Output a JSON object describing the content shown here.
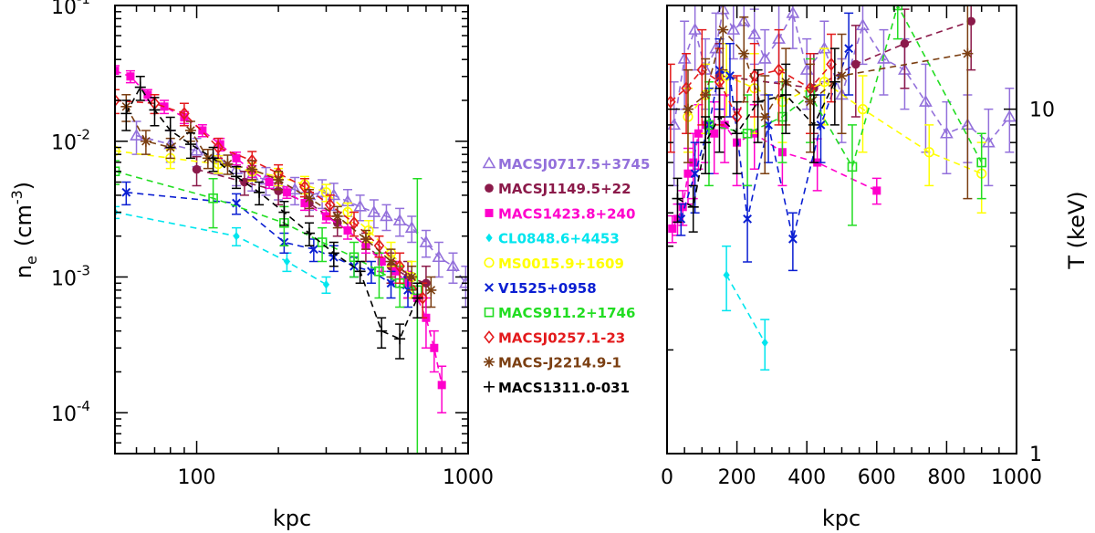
{
  "chart_data": [
    {
      "type": "scatter",
      "xscale": "log",
      "yscale": "log",
      "xlabel": "kpc",
      "ylabel_parts": {
        "base": "n",
        "sub": "e",
        "unit_open": "(cm",
        "unit_exp": "-3",
        "unit_close": ")"
      },
      "xlim": [
        50,
        1000
      ],
      "ylim": [
        5e-05,
        0.1
      ],
      "xticks": [
        {
          "v": 100,
          "label": "100"
        },
        {
          "v": 1000,
          "label": "1000"
        }
      ],
      "yticks": [
        {
          "v": 0.0001,
          "base": "10",
          "exp": "-4"
        },
        {
          "v": 0.001,
          "base": "10",
          "exp": "-3"
        },
        {
          "v": 0.01,
          "base": "10",
          "exp": "-2"
        },
        {
          "v": 0.1,
          "base": "10",
          "exp": "-1"
        }
      ],
      "series": [
        {
          "name": "MACSJ0717.5+3745",
          "color": "#9370DB",
          "marker": "triangle",
          "x": [
            60,
            80,
            100,
            120,
            140,
            160,
            180,
            200,
            230,
            260,
            290,
            320,
            360,
            400,
            450,
            500,
            560,
            620,
            700,
            780,
            880,
            980
          ],
          "y": [
            0.011,
            0.0095,
            0.0085,
            0.0075,
            0.0062,
            0.0056,
            0.0052,
            0.0048,
            0.0044,
            0.004,
            0.0042,
            0.004,
            0.0036,
            0.0033,
            0.003,
            0.0028,
            0.0026,
            0.0023,
            0.0018,
            0.0014,
            0.0012,
            0.0009
          ],
          "err": [
            0.003,
            0.0025,
            0.002,
            0.0018,
            0.0015,
            0.0013,
            0.0012,
            0.0011,
            0.001,
            0.0009,
            0.001,
            0.0009,
            0.0008,
            0.0007,
            0.0007,
            0.0006,
            0.0006,
            0.0005,
            0.0004,
            0.0004,
            0.0003,
            0.0003
          ]
        },
        {
          "name": "MACSJ1149.5+22",
          "color": "#8B1A4A",
          "marker": "circle",
          "x": [
            100,
            150,
            200,
            260,
            330,
            420,
            520,
            600,
            700
          ],
          "y": [
            0.0062,
            0.005,
            0.0043,
            0.0035,
            0.0025,
            0.0017,
            0.0012,
            0.001,
            0.0009
          ],
          "err": [
            0.0015,
            0.001,
            0.0009,
            0.0007,
            0.0005,
            0.0004,
            0.0003,
            0.0003,
            0.0003
          ]
        },
        {
          "name": "MACS1423.8+240",
          "color": "#FF00CC",
          "marker": "square",
          "x": [
            50,
            57,
            66,
            76,
            90,
            105,
            122,
            140,
            160,
            185,
            215,
            250,
            300,
            360,
            420,
            480,
            540,
            600,
            650,
            700,
            750,
            800
          ],
          "y": [
            0.033,
            0.03,
            0.022,
            0.018,
            0.015,
            0.012,
            0.0095,
            0.0075,
            0.006,
            0.005,
            0.0042,
            0.0035,
            0.0028,
            0.0022,
            0.0017,
            0.0013,
            0.0011,
            0.0009,
            0.0007,
            0.0005,
            0.0003,
            0.00016
          ],
          "err": [
            0.003,
            0.003,
            0.002,
            0.002,
            0.0015,
            0.0012,
            0.001,
            0.0008,
            0.0006,
            0.0005,
            0.0004,
            0.0004,
            0.0003,
            0.0003,
            0.0002,
            0.0002,
            0.0002,
            0.0002,
            0.0002,
            0.0002,
            0.0001,
            6e-05
          ]
        },
        {
          "name": "CL0848.6+4453",
          "color": "#00E5EE",
          "marker": "diamond",
          "x": [
            50,
            140,
            215,
            300
          ],
          "y": [
            0.003,
            0.002,
            0.0013,
            0.00088
          ],
          "err": [
            0.0003,
            0.0003,
            0.0002,
            0.00012
          ]
        },
        {
          "name": "MS0015.9+1609",
          "color": "#FFFF00",
          "marker": "circle_open",
          "x": [
            50,
            80,
            120,
            160,
            200,
            250,
            300,
            360,
            430,
            520,
            620
          ],
          "y": [
            0.0085,
            0.0075,
            0.0068,
            0.006,
            0.0055,
            0.0048,
            0.0042,
            0.003,
            0.0022,
            0.0015,
            0.001
          ],
          "err": [
            0.0015,
            0.0012,
            0.001,
            0.0009,
            0.0008,
            0.0007,
            0.0006,
            0.0005,
            0.0004,
            0.0003,
            0.0003
          ]
        },
        {
          "name": "V1525+0958",
          "color": "#0A1ED2",
          "marker": "x",
          "x": [
            55,
            140,
            210,
            270,
            320,
            380,
            440,
            520,
            600
          ],
          "y": [
            0.0042,
            0.0035,
            0.0018,
            0.0016,
            0.0014,
            0.0012,
            0.0011,
            0.0009,
            0.0008
          ],
          "err": [
            0.0008,
            0.0006,
            0.0003,
            0.0003,
            0.0003,
            0.0002,
            0.0002,
            0.0002,
            0.0002
          ]
        },
        {
          "name": "MACS911.2+1746",
          "color": "#22DD22",
          "marker": "square_open",
          "x": [
            50,
            115,
            210,
            290,
            380,
            470,
            560,
            650
          ],
          "y": [
            0.006,
            0.0038,
            0.0025,
            0.0018,
            0.0014,
            0.0011,
            0.0009,
            0.0008
          ],
          "err": [
            0.0012,
            0.0015,
            0.0008,
            0.0005,
            0.0004,
            0.0004,
            0.0003,
            0.0045
          ]
        },
        {
          "name": "MACSJ0257.1-23",
          "color": "#E31A1C",
          "marker": "diamond_open",
          "x": [
            50,
            70,
            90,
            120,
            160,
            200,
            250,
            310,
            380,
            470,
            560,
            680
          ],
          "y": [
            0.02,
            0.019,
            0.016,
            0.009,
            0.0072,
            0.0058,
            0.0046,
            0.0034,
            0.0025,
            0.0017,
            0.0012,
            0.0007
          ],
          "err": [
            0.004,
            0.003,
            0.003,
            0.0015,
            0.0012,
            0.0009,
            0.0007,
            0.0006,
            0.0005,
            0.0003,
            0.0003,
            0.0002
          ]
        },
        {
          "name": "MACS-J2214.9-1",
          "color": "#7B3F12",
          "marker": "star",
          "x": [
            55,
            65,
            80,
            95,
            110,
            130,
            160,
            200,
            260,
            330,
            420,
            520,
            620,
            730
          ],
          "y": [
            0.018,
            0.01,
            0.009,
            0.012,
            0.0075,
            0.0068,
            0.0062,
            0.0052,
            0.0038,
            0.0028,
            0.0019,
            0.0013,
            0.001,
            0.0008
          ],
          "err": [
            0.004,
            0.002,
            0.0015,
            0.002,
            0.0012,
            0.0011,
            0.001,
            0.0008,
            0.0006,
            0.0005,
            0.0003,
            0.0003,
            0.0002,
            0.0002
          ]
        },
        {
          "name": "MACS1311.0-031",
          "color": "#000000",
          "marker": "plus",
          "x": [
            55,
            62,
            70,
            80,
            95,
            115,
            140,
            170,
            210,
            260,
            320,
            400,
            480,
            560,
            650
          ],
          "y": [
            0.016,
            0.025,
            0.017,
            0.012,
            0.0095,
            0.0075,
            0.0055,
            0.0042,
            0.003,
            0.0021,
            0.0015,
            0.0011,
            0.0004,
            0.00035,
            0.0007
          ],
          "err": [
            0.004,
            0.005,
            0.004,
            0.003,
            0.002,
            0.0015,
            0.001,
            0.0008,
            0.0006,
            0.0004,
            0.0003,
            0.0002,
            0.0001,
            0.0001,
            0.0002
          ]
        }
      ]
    },
    {
      "type": "scatter",
      "xscale": "linear",
      "yscale": "log",
      "xlabel": "kpc",
      "ylabel": "T (keV)",
      "xlim": [
        0,
        1000
      ],
      "ylim": [
        1,
        20
      ],
      "xticks": [
        {
          "v": 0,
          "label": "0"
        },
        {
          "v": 200,
          "label": "200"
        },
        {
          "v": 400,
          "label": "400"
        },
        {
          "v": 600,
          "label": "600"
        },
        {
          "v": 800,
          "label": "800"
        },
        {
          "v": 1000,
          "label": "1000"
        }
      ],
      "yticks": [
        {
          "v": 1,
          "label": "1"
        },
        {
          "v": 10,
          "label": "10"
        }
      ],
      "series": [
        {
          "name": "MACSJ0717.5+3745",
          "color": "#9370DB",
          "marker": "triangle",
          "x": [
            20,
            50,
            80,
            110,
            140,
            160,
            190,
            220,
            250,
            280,
            320,
            360,
            400,
            450,
            500,
            560,
            620,
            680,
            740,
            800,
            860,
            920,
            980
          ],
          "y": [
            9.0,
            14.0,
            17.0,
            13.0,
            15.0,
            19.5,
            17.0,
            18.0,
            16.5,
            14.0,
            16.0,
            19.0,
            13.0,
            15.0,
            11.0,
            17.5,
            14.0,
            13.0,
            10.5,
            8.5,
            9.0,
            8.0,
            9.5
          ],
          "err": [
            3,
            4,
            4,
            3,
            4,
            4,
            3,
            4,
            3,
            3,
            4,
            4,
            3,
            3,
            3,
            4,
            3,
            3,
            3,
            2,
            2,
            2,
            2
          ]
        },
        {
          "name": "MACSJ1149.5+22",
          "color": "#8B1A4A",
          "marker": "circle",
          "x": [
            150,
            420,
            540,
            680,
            870
          ],
          "y": [
            12.5,
            11.5,
            13.5,
            15.5,
            18.0
          ],
          "err": [
            3,
            3,
            4,
            4,
            5
          ]
        },
        {
          "name": "MACS1423.8+240",
          "color": "#FF00CC",
          "marker": "square",
          "x": [
            15,
            30,
            45,
            60,
            75,
            90,
            110,
            135,
            165,
            200,
            250,
            330,
            430,
            600
          ],
          "y": [
            4.5,
            4.8,
            5.2,
            6.5,
            7.0,
            8.5,
            9.0,
            8.5,
            9.0,
            8.0,
            8.5,
            7.5,
            7.0,
            5.8
          ],
          "err": [
            0.4,
            0.5,
            0.6,
            1.2,
            1.5,
            1.8,
            2,
            2,
            2,
            2,
            1.8,
            1.5,
            1.2,
            0.5
          ]
        },
        {
          "name": "CL0848.6+4453",
          "color": "#00E5EE",
          "marker": "diamond",
          "x": [
            170,
            280
          ],
          "y": [
            3.3,
            2.1
          ],
          "err": [
            0.7,
            0.35
          ]
        },
        {
          "name": "MS0015.9+1609",
          "color": "#FFFF00",
          "marker": "circle_open",
          "x": [
            60,
            110,
            170,
            250,
            330,
            450,
            560,
            750,
            900
          ],
          "y": [
            9.5,
            11.0,
            12.5,
            11.5,
            10.5,
            12.0,
            10.0,
            7.5,
            6.5
          ],
          "err": [
            2,
            2.5,
            3,
            3,
            2.5,
            3,
            2.5,
            1.5,
            1.5
          ]
        },
        {
          "name": "V1525+0958",
          "color": "#0A1ED2",
          "marker": "x",
          "x": [
            40,
            80,
            120,
            150,
            180,
            230,
            290,
            360,
            440,
            520
          ],
          "y": [
            4.8,
            6.5,
            9.0,
            13.0,
            12.5,
            4.8,
            9.0,
            4.2,
            9.0,
            15.0
          ],
          "err": [
            0.5,
            1.5,
            2.5,
            3,
            3,
            1.2,
            2,
            0.8,
            2,
            4
          ]
        },
        {
          "name": "MACS911.2+1746",
          "color": "#22DD22",
          "marker": "square_open",
          "x": [
            120,
            230,
            330,
            410,
            530,
            660,
            900
          ],
          "y": [
            9.0,
            8.5,
            9.5,
            11.0,
            6.8,
            20.0,
            7.0
          ],
          "err": [
            3,
            2.5,
            2.5,
            3,
            2.2,
            4,
            1.5
          ]
        },
        {
          "name": "MACSJ0257.1-23",
          "color": "#E31A1C",
          "marker": "diamond_open",
          "x": [
            10,
            55,
            100,
            150,
            200,
            250,
            320,
            410,
            470
          ],
          "y": [
            10.5,
            11.5,
            13.0,
            12.0,
            9.5,
            12.5,
            13.0,
            11.5,
            13.5
          ],
          "err": [
            3,
            3,
            4,
            3,
            3,
            3,
            4,
            3,
            3
          ]
        },
        {
          "name": "MACS-J2214.9-1",
          "color": "#7B3F12",
          "marker": "star",
          "x": [
            60,
            110,
            160,
            220,
            280,
            340,
            410,
            500,
            860
          ],
          "y": [
            10.0,
            11.0,
            17.0,
            14.5,
            9.5,
            12.0,
            10.5,
            12.5,
            14.5
          ],
          "err": [
            3,
            3,
            4,
            4,
            3,
            3,
            3,
            4,
            9
          ]
        },
        {
          "name": "MACS1311.0-031",
          "color": "#000000",
          "marker": "plus",
          "x": [
            30,
            75,
            110,
            150,
            200,
            260,
            340,
            420,
            480
          ],
          "y": [
            5.5,
            5.2,
            8.0,
            9.5,
            8.5,
            10.5,
            11.0,
            9.0,
            12.0
          ],
          "err": [
            0.8,
            0.8,
            1.5,
            2,
            2,
            2.5,
            2.5,
            2,
            3
          ]
        }
      ]
    }
  ]
}
